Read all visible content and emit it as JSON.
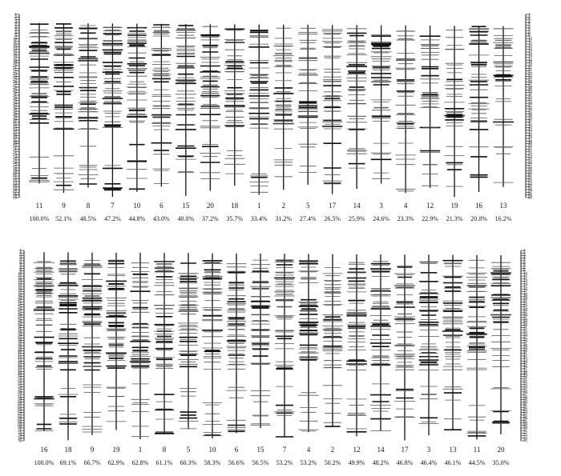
{
  "panels": [
    {
      "id": "top",
      "scale_labels": [
        "1",
        "2",
        "3",
        "4",
        "5",
        "6",
        "7",
        "8",
        "9",
        "10",
        "11",
        "12",
        "13",
        "14",
        "15",
        "16",
        "17",
        "18",
        "19",
        "20",
        "21",
        "22",
        "23",
        "24",
        "25",
        "26",
        "27",
        "28",
        "29",
        "30",
        "31",
        "32",
        "33",
        "34",
        "35",
        "36",
        "37",
        "38",
        "39",
        "40",
        "41",
        "42",
        "43",
        "44",
        "45",
        "46",
        "47",
        "48",
        "49",
        "50",
        "51",
        "52",
        "53",
        "54",
        "55",
        "56",
        "57",
        "58",
        "59",
        "60",
        "61",
        "62",
        "63",
        "64",
        "65",
        "66",
        "67",
        "68",
        "69"
      ],
      "scale_min": 1,
      "scale_max": 69,
      "labeled_positions": [
        1,
        2,
        60,
        62,
        64,
        65,
        66,
        67,
        68,
        69
      ],
      "columns": [
        {
          "number": "11",
          "percent": "100.0%",
          "strength": 1.0
        },
        {
          "number": "9",
          "percent": "52.1%",
          "strength": 0.75
        },
        {
          "number": "8",
          "percent": "48.5%",
          "strength": 0.72
        },
        {
          "number": "7",
          "percent": "47.2%",
          "strength": 0.72
        },
        {
          "number": "10",
          "percent": "44.8%",
          "strength": 0.7
        },
        {
          "number": "6",
          "percent": "43.0%",
          "strength": 0.68
        },
        {
          "number": "15",
          "percent": "40.0%",
          "strength": 0.66
        },
        {
          "number": "20",
          "percent": "37.2%",
          "strength": 0.62
        },
        {
          "number": "18",
          "percent": "35.7%",
          "strength": 0.6
        },
        {
          "number": "1",
          "percent": "33.4%",
          "strength": 0.58
        },
        {
          "number": "2",
          "percent": "31.2%",
          "strength": 0.56
        },
        {
          "number": "5",
          "percent": "27.4%",
          "strength": 0.52
        },
        {
          "number": "17",
          "percent": "26.5%",
          "strength": 0.5
        },
        {
          "number": "14",
          "percent": "25.9%",
          "strength": 0.5
        },
        {
          "number": "3",
          "percent": "24.6%",
          "strength": 0.46
        },
        {
          "number": "4",
          "percent": "23.3%",
          "strength": 0.46
        },
        {
          "number": "12",
          "percent": "22.9%",
          "strength": 0.44
        },
        {
          "number": "19",
          "percent": "21.3%",
          "strength": 0.42
        },
        {
          "number": "16",
          "percent": "20.8%",
          "strength": 0.42
        },
        {
          "number": "13",
          "percent": "16.2%",
          "strength": 0.38
        }
      ]
    },
    {
      "id": "bottom",
      "scale_labels": [
        "1",
        "2",
        "3",
        "4",
        "5",
        "6",
        "7",
        "8",
        "9",
        "10",
        "11",
        "12",
        "13",
        "14",
        "15",
        "16",
        "17",
        "18",
        "19",
        "20",
        "21",
        "22",
        "23",
        "24",
        "25",
        "26",
        "27",
        "28",
        "29",
        "30",
        "31",
        "32",
        "33",
        "34",
        "35",
        "36",
        "37",
        "38",
        "39",
        "40",
        "41",
        "42",
        "43",
        "44",
        "45",
        "46",
        "47",
        "48",
        "49",
        "50",
        "51",
        "52",
        "53",
        "54",
        "55",
        "56",
        "57",
        "58",
        "59",
        "60",
        "61",
        "62",
        "63",
        "64",
        "65",
        "66",
        "67",
        "68",
        "69",
        "70",
        "71",
        "72",
        "73",
        "74",
        "75"
      ],
      "scale_min": 1,
      "scale_max": 75,
      "labeled_positions": [
        1,
        2,
        62,
        63,
        64,
        65,
        66,
        67,
        68,
        69,
        70,
        71,
        72,
        73,
        74,
        75
      ],
      "columns": [
        {
          "number": "16",
          "percent": "100.0%",
          "strength": 0.95
        },
        {
          "number": "18",
          "percent": "69.1%",
          "strength": 0.85
        },
        {
          "number": "9",
          "percent": "66.7%",
          "strength": 0.85
        },
        {
          "number": "19",
          "percent": "62.9%",
          "strength": 0.8
        },
        {
          "number": "1",
          "percent": "62.8%",
          "strength": 0.72
        },
        {
          "number": "8",
          "percent": "61.1%",
          "strength": 0.8
        },
        {
          "number": "5",
          "percent": "60.3%",
          "strength": 0.8
        },
        {
          "number": "10",
          "percent": "58.3%",
          "strength": 0.78
        },
        {
          "number": "6",
          "percent": "56.6%",
          "strength": 0.78
        },
        {
          "number": "15",
          "percent": "56.5%",
          "strength": 0.78
        },
        {
          "number": "7",
          "percent": "53.2%",
          "strength": 0.76
        },
        {
          "number": "4",
          "percent": "53.2%",
          "strength": 0.74
        },
        {
          "number": "2",
          "percent": "50.2%",
          "strength": 0.7
        },
        {
          "number": "12",
          "percent": "49.9%",
          "strength": 0.74
        },
        {
          "number": "14",
          "percent": "48.2%",
          "strength": 0.76
        },
        {
          "number": "17",
          "percent": "46.8%",
          "strength": 0.72
        },
        {
          "number": "3",
          "percent": "46.4%",
          "strength": 0.72
        },
        {
          "number": "13",
          "percent": "46.1%",
          "strength": 0.7
        },
        {
          "number": "11",
          "percent": "44.5%",
          "strength": 0.72
        },
        {
          "number": "20",
          "percent": "35.0%",
          "strength": 0.66
        }
      ]
    }
  ]
}
